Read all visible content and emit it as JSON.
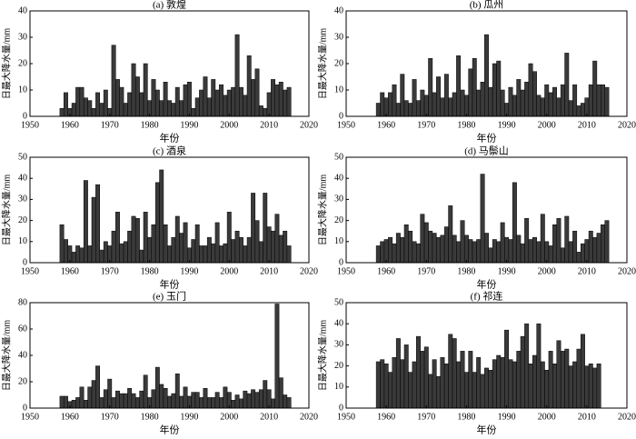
{
  "chart_data": [
    {
      "type": "bar",
      "title": "(a) 敦煌",
      "x_label": "年份",
      "y_label": "日最大降水量/mm",
      "color": "#3a3a3a",
      "x": [
        1958,
        1959,
        1960,
        1961,
        1962,
        1963,
        1964,
        1965,
        1966,
        1967,
        1968,
        1969,
        1970,
        1971,
        1972,
        1973,
        1974,
        1975,
        1976,
        1977,
        1978,
        1979,
        1980,
        1981,
        1982,
        1983,
        1984,
        1985,
        1986,
        1987,
        1988,
        1989,
        1990,
        1991,
        1992,
        1993,
        1994,
        1995,
        1996,
        1997,
        1998,
        1999,
        2000,
        2001,
        2002,
        2003,
        2004,
        2005,
        2006,
        2007,
        2008,
        2009,
        2010,
        2011,
        2012,
        2013,
        2014,
        2015
      ],
      "values": [
        3,
        9,
        3,
        5,
        11,
        11,
        7,
        6,
        3,
        9,
        5,
        10,
        3,
        27,
        14,
        11,
        5,
        9,
        20,
        15,
        9,
        20,
        6,
        14,
        10,
        6,
        13,
        6,
        5,
        11,
        6,
        12,
        13,
        3,
        7,
        10,
        15,
        7,
        14,
        10,
        12,
        8,
        10,
        11,
        31,
        11,
        8,
        23,
        14,
        18,
        4,
        3,
        9,
        14,
        12,
        13,
        10,
        11
      ],
      "xlim": [
        1950,
        2020
      ],
      "xticks": [
        1950,
        1960,
        1970,
        1980,
        1990,
        2000,
        2010,
        2020
      ],
      "ylim": [
        0,
        40
      ],
      "yticks": [
        0,
        10,
        20,
        30,
        40
      ]
    },
    {
      "type": "bar",
      "title": "(b) 瓜州",
      "x_label": "年份",
      "y_label": "日最大降水量/mm",
      "color": "#3a3a3a",
      "x": [
        1958,
        1959,
        1960,
        1961,
        1962,
        1963,
        1964,
        1965,
        1966,
        1967,
        1968,
        1969,
        1970,
        1971,
        1972,
        1973,
        1974,
        1975,
        1976,
        1977,
        1978,
        1979,
        1980,
        1981,
        1982,
        1983,
        1984,
        1985,
        1986,
        1987,
        1988,
        1989,
        1990,
        1991,
        1992,
        1993,
        1994,
        1995,
        1996,
        1997,
        1998,
        1999,
        2000,
        2001,
        2002,
        2003,
        2004,
        2005,
        2006,
        2007,
        2008,
        2009,
        2010,
        2011,
        2012,
        2013,
        2014,
        2015
      ],
      "values": [
        5,
        9,
        7,
        9,
        12,
        5,
        16,
        6,
        5,
        14,
        6,
        10,
        8,
        22,
        9,
        15,
        7,
        16,
        7,
        9,
        23,
        10,
        8,
        18,
        22,
        10,
        13,
        31,
        11,
        20,
        21,
        10,
        5,
        11,
        8,
        14,
        10,
        13,
        20,
        17,
        8,
        7,
        12,
        9,
        11,
        7,
        12,
        24,
        6,
        12,
        4,
        5,
        7,
        12,
        21,
        12,
        12,
        11
      ],
      "xlim": [
        1950,
        2020
      ],
      "xticks": [
        1950,
        1960,
        1970,
        1980,
        1990,
        2000,
        2010,
        2020
      ],
      "ylim": [
        0,
        40
      ],
      "yticks": [
        0,
        10,
        20,
        30,
        40
      ]
    },
    {
      "type": "bar",
      "title": "(c) 酒泉",
      "x_label": "年份",
      "y_label": "日最大降水量/mm",
      "color": "#3a3a3a",
      "x": [
        1958,
        1959,
        1960,
        1961,
        1962,
        1963,
        1964,
        1965,
        1966,
        1967,
        1968,
        1969,
        1970,
        1971,
        1972,
        1973,
        1974,
        1975,
        1976,
        1977,
        1978,
        1979,
        1980,
        1981,
        1982,
        1983,
        1984,
        1985,
        1986,
        1987,
        1988,
        1989,
        1990,
        1991,
        1992,
        1993,
        1994,
        1995,
        1996,
        1997,
        1998,
        1999,
        2000,
        2001,
        2002,
        2003,
        2004,
        2005,
        2006,
        2007,
        2008,
        2009,
        2010,
        2011,
        2012,
        2013,
        2014,
        2015
      ],
      "values": [
        18,
        11,
        8,
        5,
        8,
        7,
        39,
        8,
        31,
        37,
        6,
        10,
        8,
        15,
        24,
        9,
        10,
        15,
        22,
        21,
        6,
        24,
        12,
        18,
        38,
        44,
        18,
        8,
        12,
        22,
        14,
        19,
        7,
        11,
        18,
        8,
        8,
        12,
        9,
        19,
        8,
        9,
        24,
        11,
        15,
        12,
        8,
        12,
        33,
        20,
        10,
        33,
        17,
        15,
        23,
        13,
        15,
        8
      ],
      "xlim": [
        1950,
        2020
      ],
      "xticks": [
        1950,
        1960,
        1970,
        1980,
        1990,
        2000,
        2010,
        2020
      ],
      "ylim": [
        0,
        50
      ],
      "yticks": [
        0,
        10,
        20,
        30,
        40,
        50
      ]
    },
    {
      "type": "bar",
      "title": "(d) 马鬃山",
      "x_label": "年份",
      "y_label": "日最大降水量/mm",
      "color": "#3a3a3a",
      "x": [
        1958,
        1959,
        1960,
        1961,
        1962,
        1963,
        1964,
        1965,
        1966,
        1967,
        1968,
        1969,
        1970,
        1971,
        1972,
        1973,
        1974,
        1975,
        1976,
        1977,
        1978,
        1979,
        1980,
        1981,
        1982,
        1983,
        1984,
        1985,
        1986,
        1987,
        1988,
        1989,
        1990,
        1991,
        1992,
        1993,
        1994,
        1995,
        1996,
        1997,
        1998,
        1999,
        2000,
        2001,
        2002,
        2003,
        2004,
        2005,
        2006,
        2007,
        2008,
        2009,
        2010,
        2011,
        2012,
        2013,
        2014,
        2015
      ],
      "values": [
        8,
        10,
        11,
        12,
        9,
        14,
        12,
        18,
        15,
        10,
        9,
        23,
        19,
        15,
        14,
        12,
        13,
        17,
        27,
        13,
        10,
        20,
        13,
        11,
        10,
        11,
        42,
        14,
        7,
        11,
        10,
        19,
        12,
        11,
        38,
        13,
        9,
        21,
        11,
        12,
        10,
        23,
        10,
        8,
        18,
        21,
        7,
        22,
        10,
        15,
        5,
        9,
        11,
        15,
        12,
        14,
        18,
        20
      ],
      "xlim": [
        1950,
        2020
      ],
      "xticks": [
        1950,
        1960,
        1970,
        1980,
        1990,
        2000,
        2010,
        2020
      ],
      "ylim": [
        0,
        50
      ],
      "yticks": [
        0,
        10,
        20,
        30,
        40,
        50
      ]
    },
    {
      "type": "bar",
      "title": "(e) 玉门",
      "x_label": "年份",
      "y_label": "日最大降水量/mm",
      "color": "#3a3a3a",
      "x": [
        1958,
        1959,
        1960,
        1961,
        1962,
        1963,
        1964,
        1965,
        1966,
        1967,
        1968,
        1969,
        1970,
        1971,
        1972,
        1973,
        1974,
        1975,
        1976,
        1977,
        1978,
        1979,
        1980,
        1981,
        1982,
        1983,
        1984,
        1985,
        1986,
        1987,
        1988,
        1989,
        1990,
        1991,
        1992,
        1993,
        1994,
        1995,
        1996,
        1997,
        1998,
        1999,
        2000,
        2001,
        2002,
        2003,
        2004,
        2005,
        2006,
        2007,
        2008,
        2009,
        2010,
        2011,
        2012,
        2013,
        2014,
        2015
      ],
      "values": [
        9,
        9,
        5,
        6,
        8,
        16,
        6,
        16,
        21,
        32,
        8,
        14,
        22,
        8,
        13,
        11,
        11,
        15,
        11,
        8,
        13,
        25,
        8,
        14,
        31,
        18,
        15,
        9,
        11,
        26,
        9,
        16,
        9,
        12,
        12,
        8,
        15,
        8,
        8,
        12,
        8,
        16,
        12,
        6,
        10,
        7,
        13,
        11,
        14,
        12,
        14,
        21,
        14,
        7,
        79,
        23,
        10,
        8
      ],
      "xlim": [
        1950,
        2020
      ],
      "xticks": [
        1950,
        1960,
        1970,
        1980,
        1990,
        2000,
        2010,
        2020
      ],
      "ylim": [
        0,
        80
      ],
      "yticks": [
        0,
        20,
        40,
        60,
        80
      ]
    },
    {
      "type": "bar",
      "title": "(f) 祁连",
      "x_label": "年份",
      "y_label": "日最大降水量/mm",
      "color": "#3a3a3a",
      "x": [
        1958,
        1959,
        1960,
        1961,
        1962,
        1963,
        1964,
        1965,
        1966,
        1967,
        1968,
        1969,
        1970,
        1971,
        1972,
        1973,
        1974,
        1975,
        1976,
        1977,
        1978,
        1979,
        1980,
        1981,
        1982,
        1983,
        1984,
        1985,
        1986,
        1987,
        1988,
        1989,
        1990,
        1991,
        1992,
        1993,
        1994,
        1995,
        1996,
        1997,
        1998,
        1999,
        2000,
        2001,
        2002,
        2003,
        2004,
        2005,
        2006,
        2007,
        2008,
        2009,
        2010,
        2011,
        2012,
        2013
      ],
      "values": [
        22,
        23,
        21,
        17,
        24,
        33,
        23,
        30,
        17,
        22,
        34,
        27,
        29,
        16,
        23,
        15,
        24,
        21,
        35,
        33,
        22,
        27,
        17,
        27,
        17,
        24,
        16,
        19,
        18,
        23,
        25,
        24,
        37,
        23,
        22,
        27,
        34,
        40,
        21,
        25,
        40,
        22,
        18,
        27,
        21,
        32,
        27,
        28,
        20,
        22,
        28,
        35,
        20,
        21,
        19,
        21
      ],
      "xlim": [
        1950,
        2020
      ],
      "xticks": [
        1950,
        1960,
        1970,
        1980,
        1990,
        2000,
        2010,
        2020
      ],
      "ylim": [
        0,
        50
      ],
      "yticks": [
        0,
        10,
        20,
        30,
        40,
        50
      ]
    }
  ]
}
